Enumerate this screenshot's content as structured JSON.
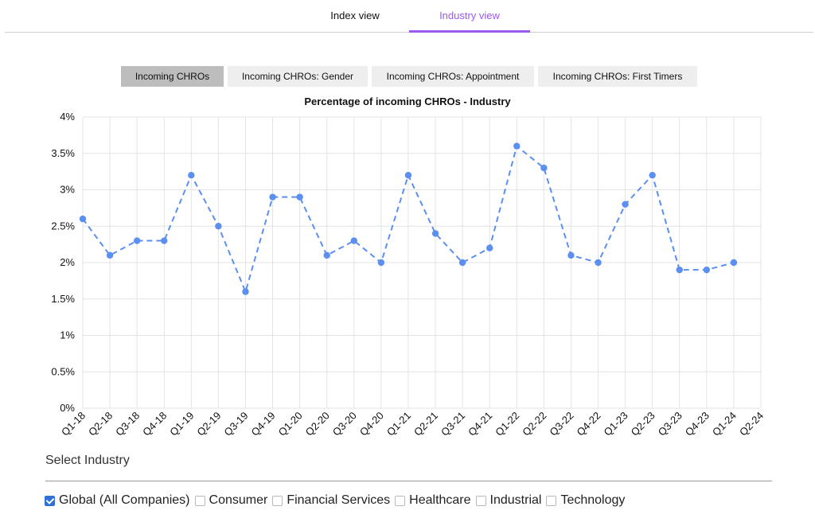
{
  "nav": {
    "tabs": [
      {
        "label": "Index view",
        "active": false
      },
      {
        "label": "Industry view",
        "active": true
      }
    ],
    "accent_color": "#9b59f0"
  },
  "subtabs": [
    {
      "label": "Incoming CHROs",
      "active": true
    },
    {
      "label": "Incoming CHROs: Gender",
      "active": false
    },
    {
      "label": "Incoming CHROs: Appointment",
      "active": false
    },
    {
      "label": "Incoming CHROs: First Timers",
      "active": false
    }
  ],
  "chart_data": {
    "type": "line",
    "title": "Percentage of incoming CHROs - Industry",
    "xlabel": "",
    "ylabel": "",
    "x": [
      "Q1-18",
      "Q2-18",
      "Q3-18",
      "Q4-18",
      "Q1-19",
      "Q2-19",
      "Q3-19",
      "Q4-19",
      "Q1-20",
      "Q2-20",
      "Q3-20",
      "Q4-20",
      "Q1-21",
      "Q2-21",
      "Q3-21",
      "Q4-21",
      "Q1-22",
      "Q2-22",
      "Q3-22",
      "Q4-22",
      "Q1-23",
      "Q2-23",
      "Q3-23",
      "Q4-23",
      "Q1-24",
      "Q2-24"
    ],
    "series": [
      {
        "values": [
          2.6,
          2.1,
          2.3,
          2.3,
          3.2,
          2.5,
          1.6,
          2.9,
          2.9,
          2.1,
          2.3,
          2.0,
          3.2,
          2.4,
          2.0,
          2.2,
          3.6,
          3.3,
          2.1,
          2.0,
          2.8,
          3.2,
          1.9,
          1.9,
          2.0,
          null
        ],
        "color": "#5b8ff0",
        "line_style": "dashed"
      }
    ],
    "ylim": [
      0,
      4
    ],
    "yticks": [
      "0%",
      "0.5%",
      "1%",
      "1.5%",
      "2%",
      "2.5%",
      "3%",
      "3.5%",
      "4%"
    ],
    "ytick_values": [
      0,
      0.5,
      1,
      1.5,
      2,
      2.5,
      3,
      3.5,
      4
    ],
    "grid": true,
    "legend": "none"
  },
  "industry": {
    "label": "Select Industry",
    "options": [
      {
        "label": "Global (All Companies)",
        "checked": true
      },
      {
        "label": "Consumer",
        "checked": false
      },
      {
        "label": "Financial Services",
        "checked": false
      },
      {
        "label": "Healthcare",
        "checked": false
      },
      {
        "label": "Industrial",
        "checked": false
      },
      {
        "label": "Technology",
        "checked": false
      }
    ]
  }
}
